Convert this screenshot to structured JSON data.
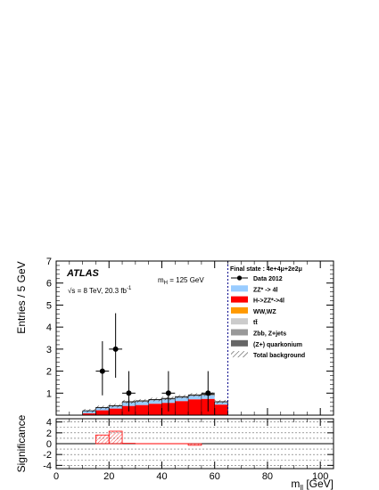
{
  "chart_data": {
    "type": "bar",
    "stacked": true,
    "bin_edges": [
      10,
      15,
      20,
      25,
      30,
      35,
      40,
      45,
      50,
      55,
      60,
      65
    ],
    "series": [
      {
        "name": "H->ZZ*->4l",
        "color": "#ff0000",
        "values": [
          0.08,
          0.22,
          0.3,
          0.42,
          0.46,
          0.52,
          0.56,
          0.64,
          0.72,
          0.74,
          0.48
        ]
      },
      {
        "name": "ZZ* -> 4l",
        "color": "#99ccff",
        "values": [
          0.1,
          0.1,
          0.1,
          0.15,
          0.15,
          0.15,
          0.15,
          0.15,
          0.15,
          0.15,
          0.1
        ]
      },
      {
        "name": "Zbb, Z+jets",
        "color": "#999999",
        "values": [
          0.02,
          0.03,
          0.03,
          0.04,
          0.04,
          0.04,
          0.05,
          0.05,
          0.05,
          0.06,
          0.03
        ]
      }
    ],
    "data": {
      "name": "Data 2012",
      "x": [
        17.5,
        22.5,
        27.5,
        42.5,
        57.5
      ],
      "y": [
        2,
        3,
        1,
        1,
        1
      ],
      "err_up": [
        1.36,
        1.63,
        1.0,
        1.0,
        1.0
      ],
      "err_down": [
        1.1,
        1.3,
        0.83,
        0.83,
        0.83
      ]
    },
    "cut_x": 65,
    "xlim": [
      0,
      105
    ],
    "ylim": [
      0,
      7
    ],
    "x_ticks": [
      0,
      20,
      40,
      60,
      80,
      100
    ],
    "y_ticks": [
      1,
      2,
      3,
      4,
      5,
      6,
      7
    ],
    "xlabel_main": "m",
    "xlabel_sub": "ll",
    "xlabel_unit": " [GeV]",
    "ylabel": "Entries / 5 GeV",
    "significance": {
      "ylabel": "Significance",
      "ylim": [
        -4.6,
        4.6
      ],
      "y_ticks": [
        -4,
        -2,
        0,
        2,
        4
      ],
      "dashed_levels": [
        -4,
        -3,
        -2,
        -1,
        1,
        2,
        3,
        4
      ],
      "bin_edges": [
        15,
        20,
        25,
        30,
        50,
        55
      ],
      "values": [
        1.6,
        2.3,
        0.05,
        0.0,
        -0.3
      ]
    },
    "legend_position": "top-right",
    "legend": {
      "title": "Final state : 4e+4μ+2e2μ",
      "entries": [
        {
          "label": "Data 2012",
          "kind": "marker",
          "color": "#000000"
        },
        {
          "label": "ZZ* -> 4l",
          "kind": "box",
          "color": "#99ccff"
        },
        {
          "label": "H->ZZ*->4l",
          "kind": "box",
          "color": "#ff0000"
        },
        {
          "label": "WW,WZ",
          "kind": "box",
          "color": "#ff9900"
        },
        {
          "label": "tt̄",
          "kind": "box",
          "color": "#cccccc"
        },
        {
          "label": "Zbb, Z+jets",
          "kind": "box",
          "color": "#999999"
        },
        {
          "label": "(Z+) quarkonium",
          "kind": "box",
          "color": "#666666"
        },
        {
          "label": "Total background",
          "kind": "hatch",
          "color": "#000000"
        }
      ]
    },
    "annotations": {
      "atlas": "ATLAS",
      "energy": "√s = 8 TeV, 20.3 fb",
      "energy_sup": "-1",
      "mass_main": "m",
      "mass_sub": "H",
      "mass_rest": " = 125 GeV"
    }
  }
}
